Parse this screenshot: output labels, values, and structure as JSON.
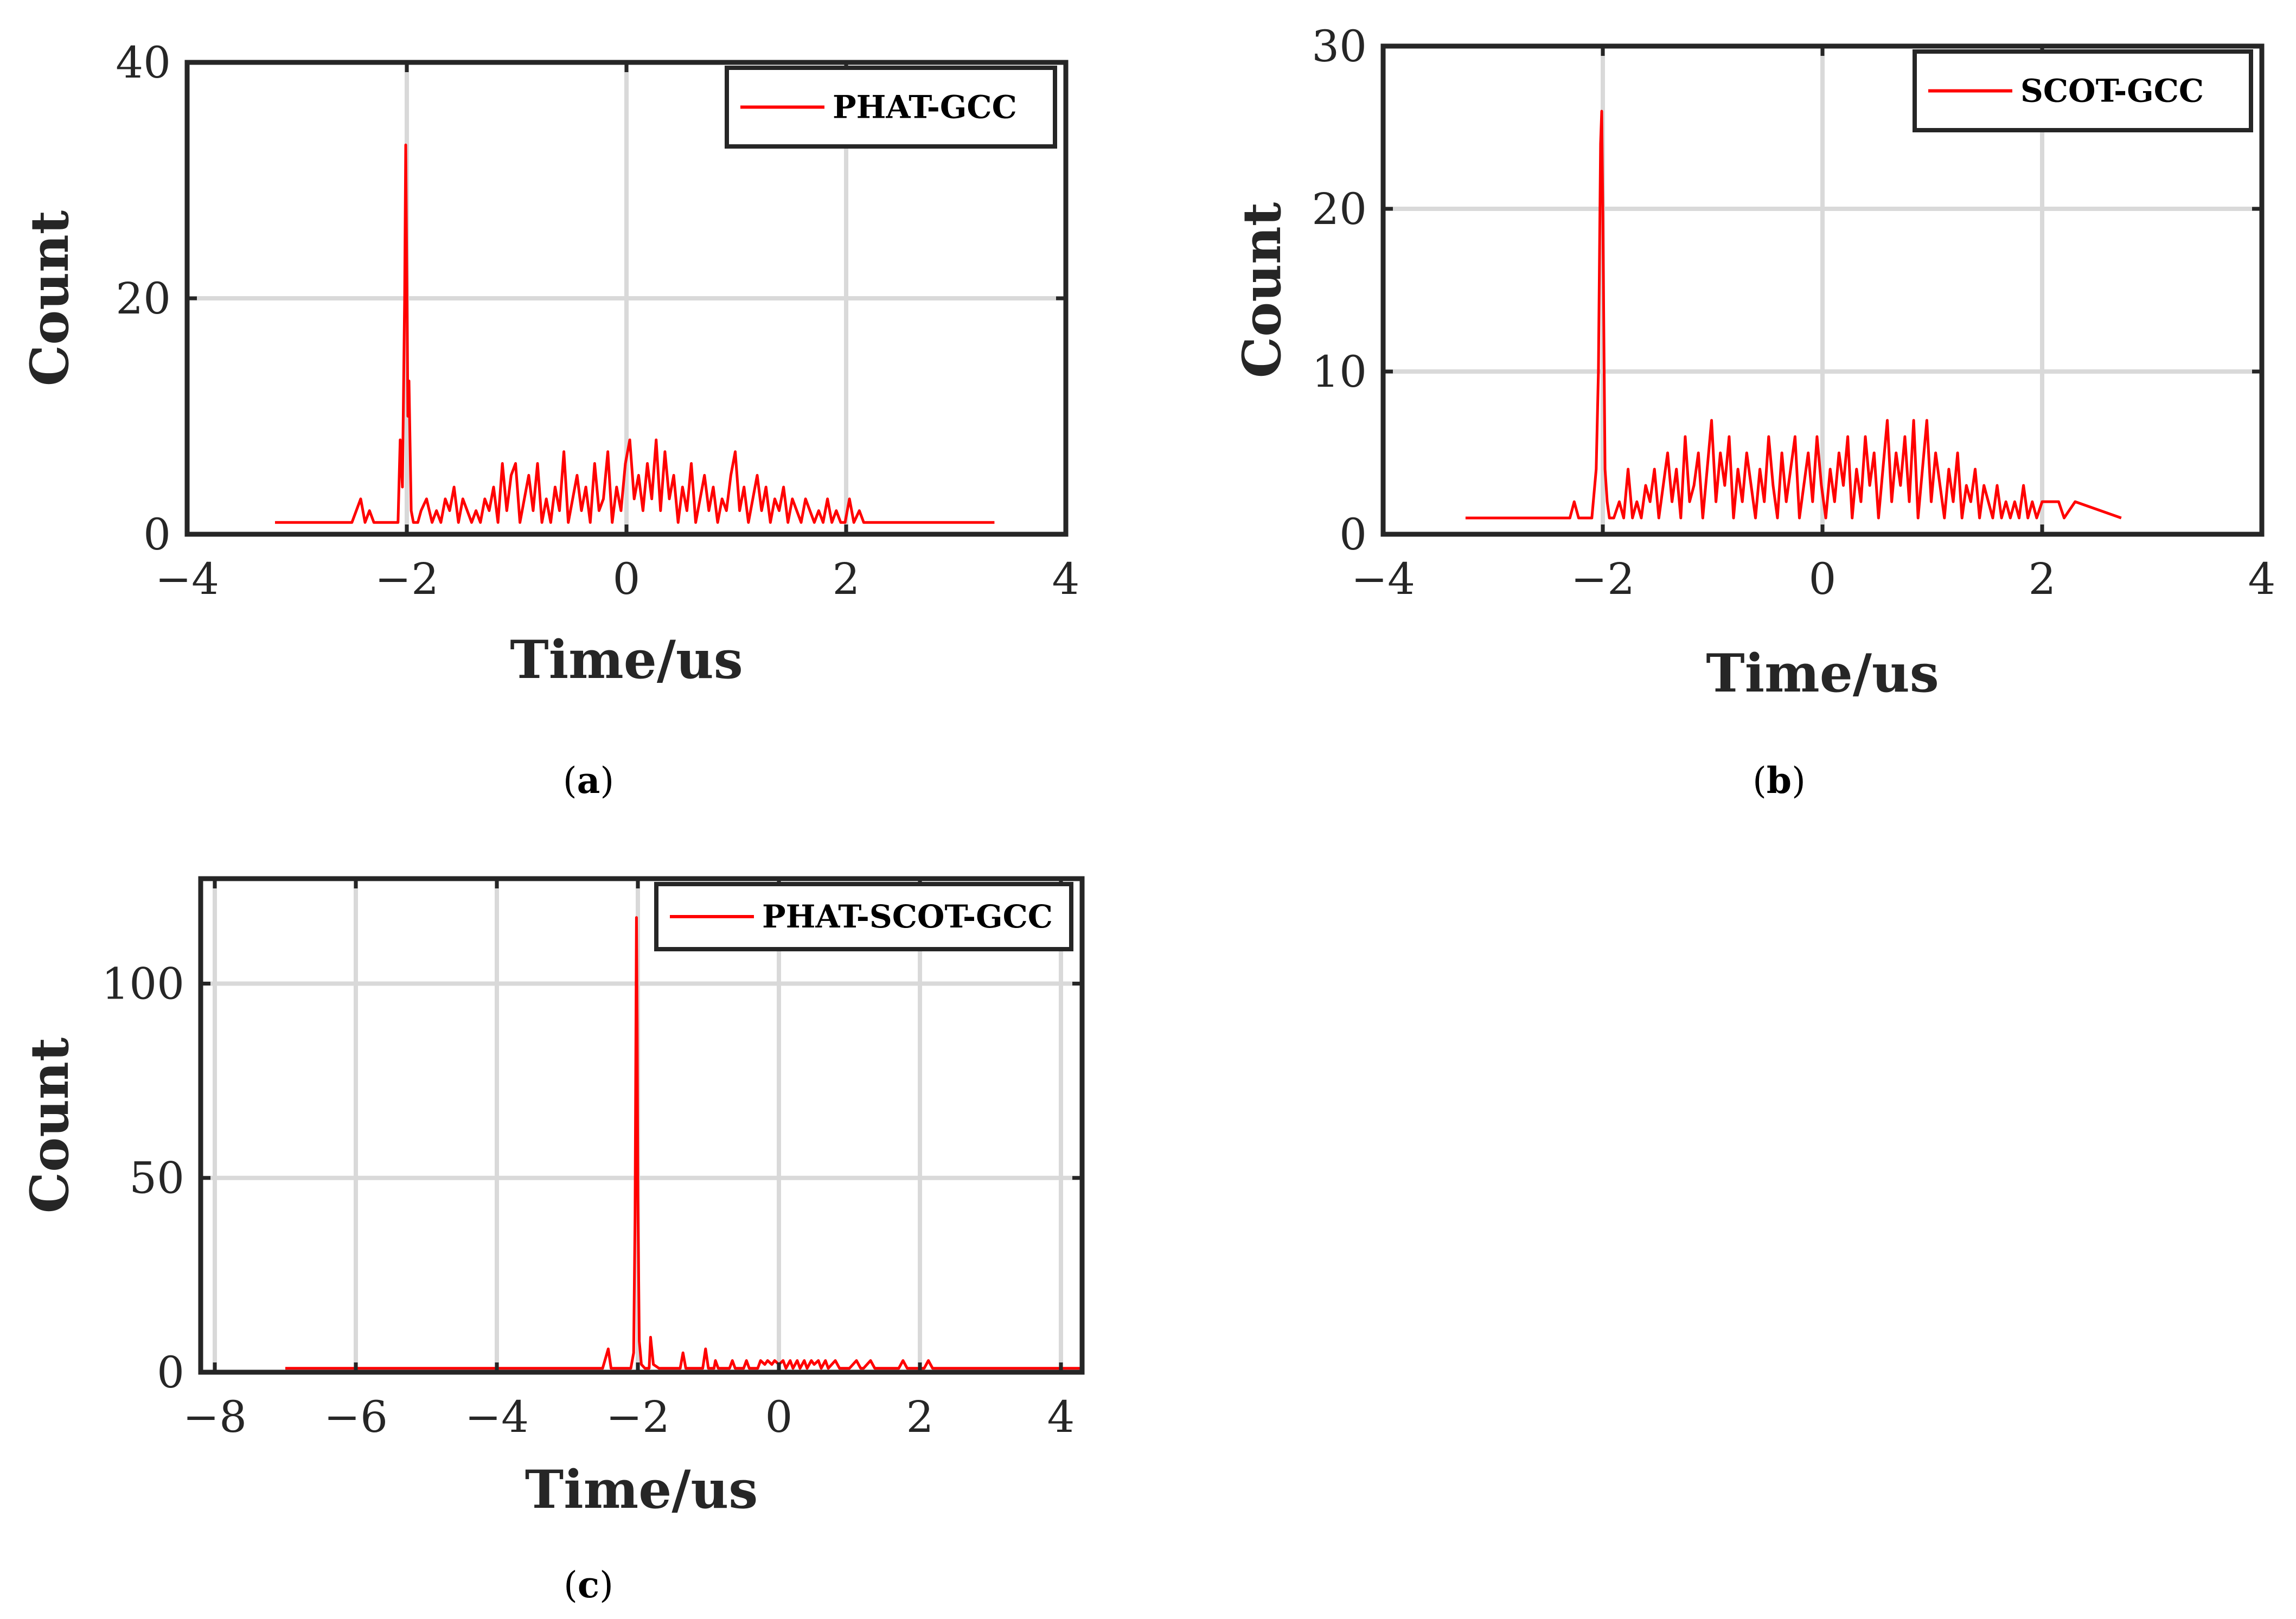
{
  "chart_data": [
    {
      "type": "line",
      "id": "a",
      "caption_label": "a",
      "legend": "PHAT-GCC",
      "xlabel": "Time/us",
      "ylabel": "Count",
      "xlim": [
        -4,
        4
      ],
      "ylim": [
        0,
        40
      ],
      "xticks": [
        -4,
        -2,
        0,
        2,
        4
      ],
      "xtick_labels": [
        "−4",
        "−2",
        "0",
        "2",
        "4"
      ],
      "yticks": [
        0,
        20,
        40
      ],
      "ytick_labels": [
        "0",
        "20",
        "40"
      ],
      "grid": true,
      "legend_position": "top-right",
      "series": [
        {
          "name": "PHAT-GCC",
          "color": "#ff0000",
          "x": [
            -3.2,
            -2.5,
            -2.42,
            -2.38,
            -2.34,
            -2.3,
            -2.26,
            -2.2,
            -2.08,
            -2.06,
            -2.04,
            -2.02,
            -2.01,
            -2.0,
            -1.99,
            -1.98,
            -1.96,
            -1.94,
            -1.92,
            -1.9,
            -1.87,
            -1.82,
            -1.77,
            -1.73,
            -1.69,
            -1.65,
            -1.61,
            -1.57,
            -1.53,
            -1.49,
            -1.45,
            -1.41,
            -1.37,
            -1.33,
            -1.29,
            -1.25,
            -1.21,
            -1.17,
            -1.13,
            -1.09,
            -1.05,
            -1.01,
            -0.97,
            -0.93,
            -0.89,
            -0.85,
            -0.81,
            -0.77,
            -0.73,
            -0.69,
            -0.65,
            -0.61,
            -0.57,
            -0.53,
            -0.49,
            -0.45,
            -0.41,
            -0.37,
            -0.33,
            -0.29,
            -0.25,
            -0.21,
            -0.17,
            -0.13,
            -0.09,
            -0.05,
            -0.01,
            0.03,
            0.07,
            0.11,
            0.15,
            0.19,
            0.23,
            0.27,
            0.31,
            0.35,
            0.39,
            0.43,
            0.47,
            0.51,
            0.55,
            0.59,
            0.63,
            0.67,
            0.71,
            0.75,
            0.79,
            0.83,
            0.87,
            0.91,
            0.95,
            0.99,
            1.03,
            1.07,
            1.11,
            1.15,
            1.19,
            1.23,
            1.27,
            1.31,
            1.35,
            1.39,
            1.43,
            1.47,
            1.51,
            1.55,
            1.59,
            1.63,
            1.67,
            1.71,
            1.75,
            1.79,
            1.83,
            1.87,
            1.91,
            1.95,
            1.99,
            2.03,
            2.07,
            2.12,
            2.16,
            2.2,
            3.35
          ],
          "values": [
            1,
            1,
            3,
            1,
            2,
            1,
            1,
            1,
            1,
            8,
            4,
            20,
            33,
            22,
            10,
            13,
            2,
            1,
            1,
            1,
            2,
            3,
            1,
            2,
            1,
            3,
            2,
            4,
            1,
            3,
            2,
            1,
            2,
            1,
            3,
            2,
            4,
            1,
            6,
            2,
            5,
            6,
            1,
            3,
            5,
            2,
            6,
            1,
            3,
            1,
            4,
            2,
            7,
            1,
            3,
            5,
            2,
            4,
            1,
            6,
            2,
            3,
            7,
            1,
            4,
            2,
            6,
            8,
            3,
            5,
            2,
            6,
            3,
            8,
            2,
            7,
            3,
            5,
            1,
            4,
            2,
            6,
            1,
            3,
            5,
            2,
            4,
            1,
            3,
            2,
            5,
            7,
            2,
            4,
            1,
            3,
            5,
            2,
            4,
            1,
            3,
            2,
            4,
            1,
            3,
            2,
            1,
            3,
            2,
            1,
            2,
            1,
            3,
            1,
            2,
            1,
            1,
            3,
            1,
            2,
            1,
            1,
            1
          ]
        }
      ]
    },
    {
      "type": "line",
      "id": "b",
      "caption_label": "b",
      "legend": "SCOT-GCC",
      "xlabel": "Time/us",
      "ylabel": "Count",
      "xlim": [
        -4,
        4
      ],
      "ylim": [
        0,
        30
      ],
      "xticks": [
        -4,
        -2,
        0,
        2,
        4
      ],
      "xtick_labels": [
        "−4",
        "−2",
        "0",
        "2",
        "4"
      ],
      "yticks": [
        0,
        10,
        20,
        30
      ],
      "ytick_labels": [
        "0",
        "10",
        "20",
        "30"
      ],
      "grid": true,
      "legend_position": "top-right",
      "series": [
        {
          "name": "SCOT-GCC",
          "color": "#ff0000",
          "x": [
            -3.25,
            -2.3,
            -2.26,
            -2.22,
            -2.1,
            -2.06,
            -2.04,
            -2.02,
            -2.01,
            -2.0,
            -1.99,
            -1.98,
            -1.96,
            -1.94,
            -1.9,
            -1.85,
            -1.81,
            -1.77,
            -1.73,
            -1.69,
            -1.65,
            -1.61,
            -1.57,
            -1.53,
            -1.49,
            -1.45,
            -1.41,
            -1.37,
            -1.33,
            -1.29,
            -1.25,
            -1.21,
            -1.17,
            -1.13,
            -1.09,
            -1.05,
            -1.01,
            -0.97,
            -0.93,
            -0.89,
            -0.85,
            -0.81,
            -0.77,
            -0.73,
            -0.69,
            -0.65,
            -0.61,
            -0.57,
            -0.53,
            -0.49,
            -0.45,
            -0.41,
            -0.37,
            -0.33,
            -0.29,
            -0.25,
            -0.21,
            -0.17,
            -0.13,
            -0.09,
            -0.05,
            -0.01,
            0.03,
            0.07,
            0.11,
            0.15,
            0.19,
            0.23,
            0.27,
            0.31,
            0.35,
            0.39,
            0.43,
            0.47,
            0.51,
            0.55,
            0.59,
            0.63,
            0.67,
            0.71,
            0.75,
            0.79,
            0.83,
            0.87,
            0.91,
            0.95,
            0.99,
            1.03,
            1.07,
            1.11,
            1.15,
            1.19,
            1.23,
            1.27,
            1.31,
            1.35,
            1.39,
            1.43,
            1.47,
            1.51,
            1.55,
            1.59,
            1.63,
            1.67,
            1.71,
            1.75,
            1.79,
            1.83,
            1.87,
            1.91,
            1.95,
            2.0,
            2.15,
            2.2,
            2.3,
            2.72
          ],
          "values": [
            1,
            1,
            2,
            1,
            1,
            4,
            10,
            24,
            26,
            20,
            12,
            4,
            2,
            1,
            1,
            2,
            1,
            4,
            1,
            2,
            1,
            3,
            2,
            4,
            1,
            3,
            5,
            2,
            4,
            1,
            6,
            2,
            3,
            5,
            1,
            4,
            7,
            2,
            5,
            3,
            6,
            1,
            4,
            2,
            5,
            3,
            1,
            4,
            2,
            6,
            3,
            1,
            5,
            2,
            4,
            6,
            1,
            3,
            5,
            2,
            6,
            3,
            1,
            4,
            2,
            5,
            3,
            6,
            1,
            4,
            2,
            6,
            3,
            5,
            1,
            4,
            7,
            2,
            5,
            3,
            6,
            2,
            7,
            1,
            4,
            7,
            2,
            5,
            3,
            1,
            4,
            2,
            5,
            1,
            3,
            2,
            4,
            1,
            3,
            2,
            1,
            3,
            1,
            2,
            1,
            2,
            1,
            3,
            1,
            2,
            1,
            2,
            2,
            1,
            2,
            1
          ]
        }
      ]
    },
    {
      "type": "line",
      "id": "c",
      "caption_label": "c",
      "legend": "PHAT-SCOT-GCC",
      "xlabel": "Time/us",
      "ylabel": "Count",
      "xlim": [
        -8.2,
        4.3
      ],
      "ylim": [
        0,
        127
      ],
      "xticks": [
        -8,
        -6,
        -4,
        -2,
        0,
        2,
        4
      ],
      "xtick_labels": [
        "−8",
        "−6",
        "−4",
        "−2",
        "0",
        "2",
        "4"
      ],
      "yticks": [
        0,
        50,
        100
      ],
      "ytick_labels": [
        "0",
        "50",
        "100"
      ],
      "grid": true,
      "legend_position": "top-right",
      "series": [
        {
          "name": "PHAT-SCOT-GCC",
          "color": "#ff0000",
          "x": [
            -7,
            -2.5,
            -2.42,
            -2.38,
            -2.34,
            -2.1,
            -2.06,
            -2.04,
            -2.02,
            -2.01,
            -2.0,
            -1.98,
            -1.95,
            -1.9,
            -1.84,
            -1.82,
            -1.78,
            -1.7,
            -1.6,
            -1.4,
            -1.36,
            -1.32,
            -1.2,
            -1.08,
            -1.04,
            -1.0,
            -0.92,
            -0.9,
            -0.86,
            -0.8,
            -0.7,
            -0.66,
            -0.62,
            -0.5,
            -0.46,
            -0.42,
            -0.3,
            -0.26,
            -0.2,
            -0.16,
            -0.1,
            -0.06,
            0.0,
            0.06,
            0.1,
            0.16,
            0.2,
            0.26,
            0.3,
            0.36,
            0.4,
            0.46,
            0.5,
            0.56,
            0.6,
            0.66,
            0.7,
            0.8,
            0.86,
            0.9,
            1.0,
            1.1,
            1.16,
            1.2,
            1.3,
            1.36,
            1.4,
            1.5,
            1.7,
            1.76,
            1.82,
            2.0,
            2.06,
            2.12,
            2.18,
            2.4,
            4.3
          ],
          "values": [
            1,
            1,
            6,
            1,
            1,
            1,
            5,
            40,
            117,
            90,
            45,
            8,
            2,
            1,
            1,
            9,
            2,
            1,
            1,
            1,
            5,
            1,
            1,
            1,
            6,
            1,
            1,
            3,
            1,
            1,
            1,
            3,
            1,
            1,
            3,
            1,
            1,
            3,
            2,
            3,
            2,
            3,
            2,
            3,
            1,
            3,
            1,
            3,
            1,
            3,
            1,
            3,
            2,
            3,
            1,
            3,
            1,
            3,
            1,
            1,
            1,
            3,
            1,
            1,
            3,
            1,
            1,
            1,
            1,
            3,
            1,
            1,
            1,
            3,
            1,
            1,
            1
          ]
        }
      ]
    }
  ]
}
